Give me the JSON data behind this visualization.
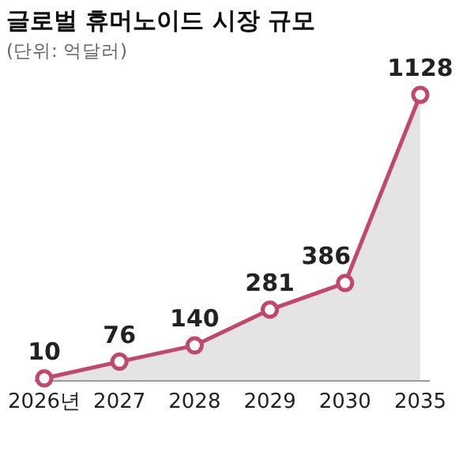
{
  "chart_data": {
    "type": "area",
    "title": "글로벌 휴머노이드 시장 규모",
    "subtitle": "(단위: 억달러)",
    "categories": [
      "2026년",
      "2027",
      "2028",
      "2029",
      "2030",
      "2035"
    ],
    "series": [
      {
        "color": "#c2476c",
        "values": [
          10,
          76,
          140,
          281,
          386,
          1128
        ]
      }
    ],
    "data_labels": true,
    "marker": "circle",
    "grid": false,
    "legend": false
  }
}
